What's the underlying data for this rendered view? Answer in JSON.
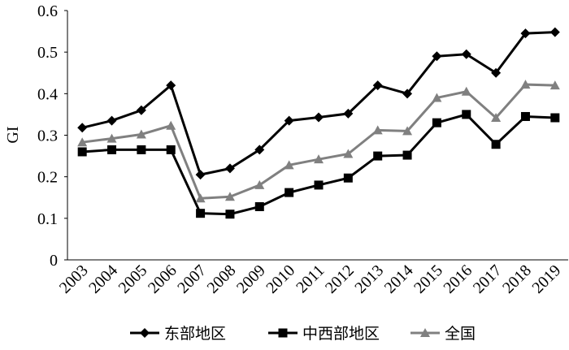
{
  "chart_data": {
    "type": "line",
    "y_label": "GI",
    "categories": [
      "2003",
      "2004",
      "2005",
      "2006",
      "2007",
      "2008",
      "2009",
      "2010",
      "2011",
      "2012",
      "2013",
      "2014",
      "2015",
      "2016",
      "2017",
      "2018",
      "2019"
    ],
    "series": [
      {
        "name": "东部地区",
        "color": "#000000",
        "marker": "diamond",
        "values": [
          0.318,
          0.335,
          0.36,
          0.42,
          0.205,
          0.22,
          0.265,
          0.335,
          0.343,
          0.352,
          0.42,
          0.4,
          0.49,
          0.495,
          0.45,
          0.545,
          0.548
        ]
      },
      {
        "name": "中西部地区",
        "color": "#000000",
        "marker": "square",
        "values": [
          0.26,
          0.265,
          0.265,
          0.265,
          0.112,
          0.11,
          0.128,
          0.162,
          0.18,
          0.197,
          0.25,
          0.252,
          0.33,
          0.35,
          0.278,
          0.345,
          0.342
        ]
      },
      {
        "name": "全国",
        "color": "#808080",
        "marker": "triangle",
        "values": [
          0.283,
          0.292,
          0.302,
          0.323,
          0.148,
          0.152,
          0.18,
          0.228,
          0.242,
          0.255,
          0.312,
          0.31,
          0.39,
          0.405,
          0.342,
          0.422,
          0.42
        ]
      }
    ],
    "ylim": [
      0,
      0.6
    ],
    "yticks": [
      0,
      0.1,
      0.2,
      0.3,
      0.4,
      0.5,
      0.6
    ],
    "grid": false,
    "legend": "bottom"
  }
}
